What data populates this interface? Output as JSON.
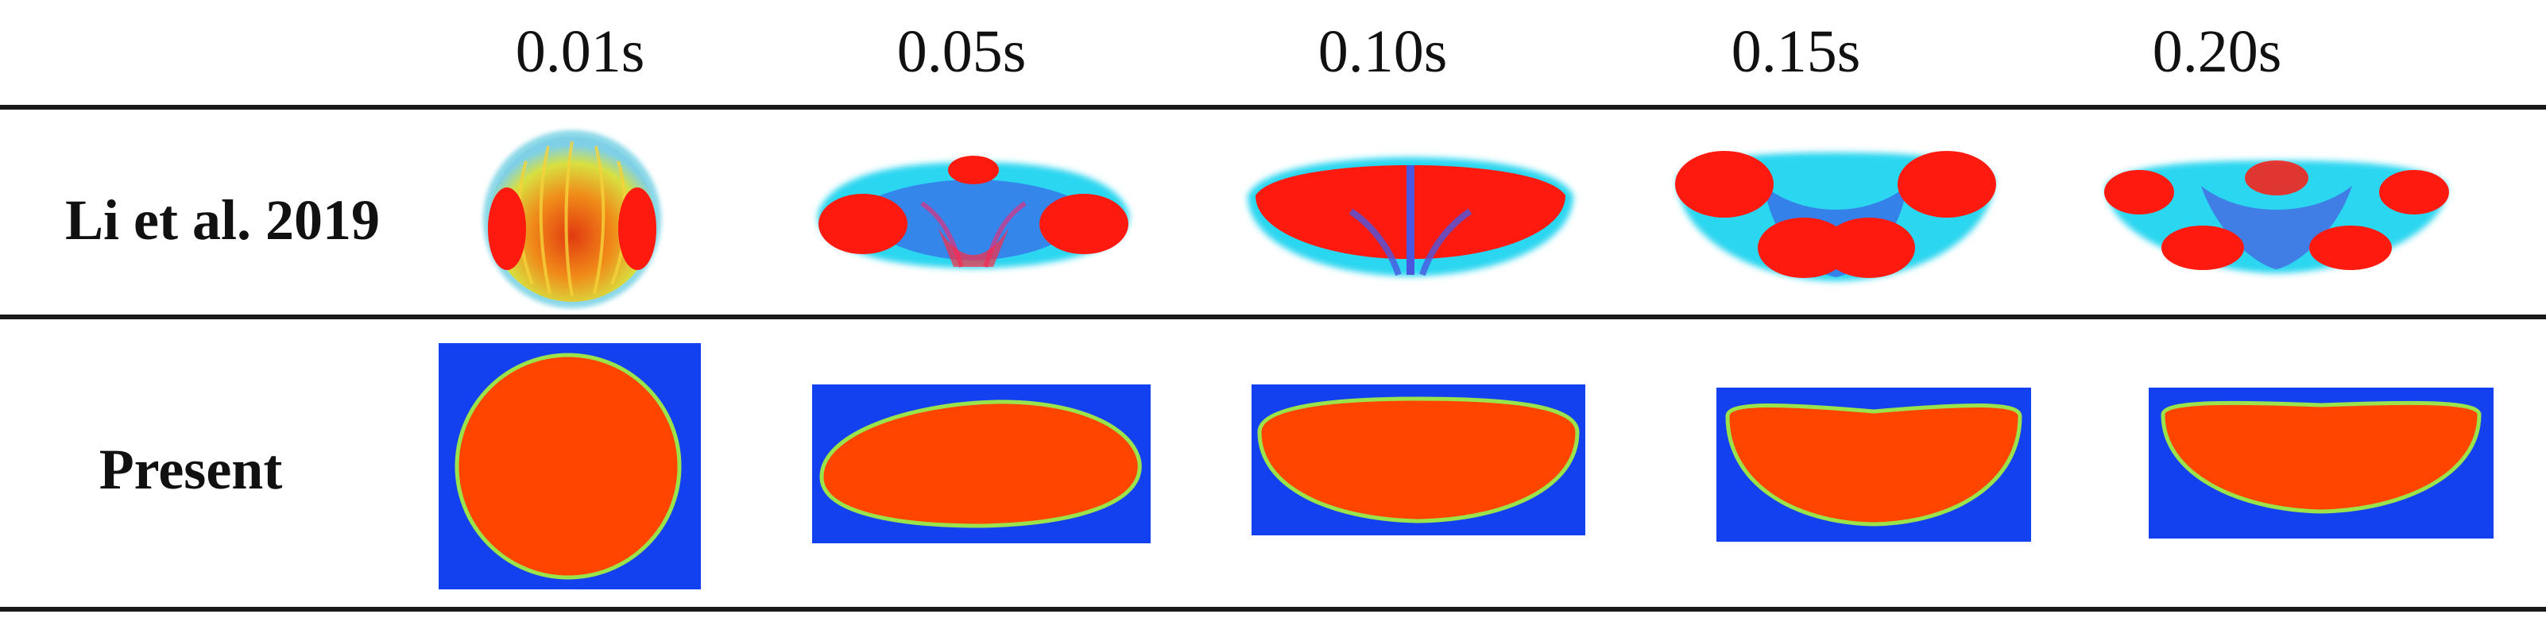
{
  "times": [
    "0.01s",
    "0.05s",
    "0.10s",
    "0.15s",
    "0.20s"
  ],
  "rows": {
    "reference_label": "Li et al. 2019",
    "present_label": "Present"
  },
  "colors": {
    "present_background": "#1441f0",
    "present_droplet": "#ff4500",
    "interface": "#9be34a",
    "reference_blob": "#ff1a10",
    "reference_field": "#2ad6f0"
  }
}
